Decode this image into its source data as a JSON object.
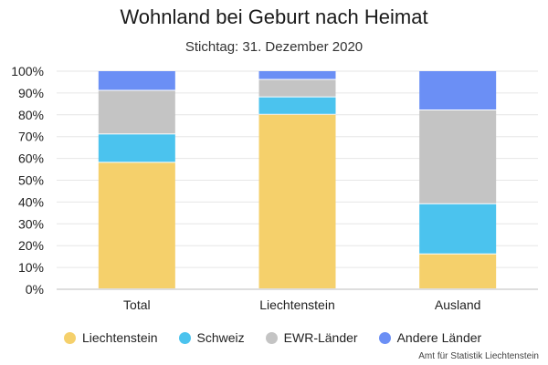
{
  "chart_data": {
    "type": "bar",
    "stacked": true,
    "normalized": true,
    "title": "Wohnland bei Geburt nach Heimat",
    "subtitle": "Stichtag: 31. Dezember 2020",
    "categories": [
      "Total",
      "Liechtenstein",
      "Ausland"
    ],
    "y_ticks": [
      "0%",
      "10%",
      "20%",
      "30%",
      "40%",
      "50%",
      "60%",
      "70%",
      "80%",
      "90%",
      "100%"
    ],
    "ylim": [
      0,
      100
    ],
    "grid": true,
    "legend_position": "bottom",
    "series": [
      {
        "name": "Liechtenstein",
        "color": "#f5d06b",
        "values": [
          58,
          80,
          16
        ]
      },
      {
        "name": "Schweiz",
        "color": "#4bc3ee",
        "values": [
          13,
          8,
          23
        ]
      },
      {
        "name": "EWR-Länder",
        "color": "#c4c4c4",
        "values": [
          20,
          8,
          43
        ]
      },
      {
        "name": "Andere Länder",
        "color": "#6b8ff5",
        "values": [
          9,
          4,
          18
        ]
      }
    ],
    "source": "Amt für Statistik Liechtenstein"
  }
}
